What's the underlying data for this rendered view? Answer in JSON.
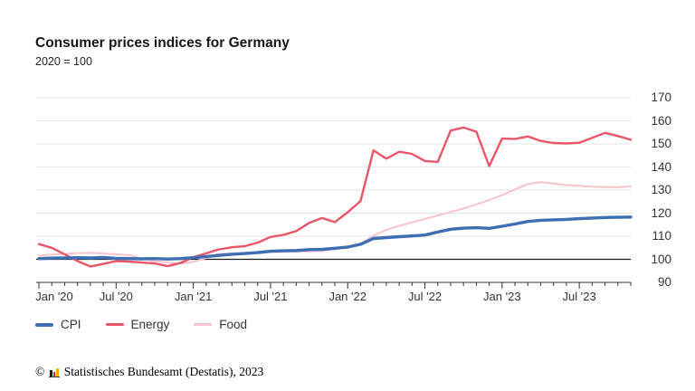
{
  "chart_data": {
    "type": "line",
    "title": "Consumer prices indices for Germany",
    "subtitle": "2020 = 100",
    "frequency": "monthly",
    "start": "2020-01",
    "end": "2023-11",
    "x_tick_labels": [
      "Jan '20",
      "Jul '20",
      "Jan '21",
      "Jul '21",
      "Jan '22",
      "Jul '22",
      "Jan '23",
      "Jul '23"
    ],
    "x_tick_month_indices": [
      0,
      6,
      12,
      18,
      24,
      30,
      36,
      42
    ],
    "y_ticks": [
      170,
      160,
      150,
      140,
      130,
      120,
      110,
      100,
      90
    ],
    "ylim": [
      90,
      170
    ],
    "baseline_value": 100,
    "grid": true,
    "legend_position": "bottom-left",
    "series": [
      {
        "name": "CPI",
        "color": "#3d6eb4",
        "values": [
          100.3,
          100.5,
          100.6,
          100.7,
          100.6,
          100.8,
          100.4,
          100.3,
          100.2,
          100.3,
          100.1,
          100.3,
          100.7,
          101.2,
          101.7,
          102.2,
          102.5,
          102.9,
          103.5,
          103.7,
          103.8,
          104.2,
          104.3,
          104.8,
          105.3,
          106.5,
          109.0,
          109.4,
          109.8,
          110.1,
          110.5,
          111.8,
          113.0,
          113.5,
          113.7,
          113.4,
          114.3,
          115.3,
          116.4,
          116.9,
          117.1,
          117.3,
          117.6,
          117.9,
          118.1,
          118.2,
          118.3
        ]
      },
      {
        "name": "Energy",
        "color": "#e95568",
        "values": [
          106.6,
          105.0,
          102.2,
          99.2,
          96.9,
          98.0,
          99.2,
          99.0,
          98.6,
          98.2,
          97.0,
          98.4,
          100.9,
          102.6,
          104.3,
          105.2,
          105.7,
          107.2,
          109.7,
          110.6,
          112.2,
          115.8,
          117.9,
          116.1,
          120.4,
          125.2,
          147.2,
          143.6,
          146.6,
          145.7,
          142.6,
          142.2,
          155.8,
          157.1,
          155.3,
          140.4,
          152.3,
          152.1,
          153.2,
          151.3,
          150.4,
          150.2,
          150.5,
          152.6,
          154.8,
          153.4,
          151.8
        ]
      },
      {
        "name": "Food",
        "color": "#f8c3ca",
        "values": [
          101.7,
          102.0,
          102.3,
          102.7,
          102.8,
          102.5,
          102.2,
          101.9,
          100.3,
          99.2,
          98.6,
          98.1,
          98.9,
          100.6,
          102.4,
          102.2,
          102.4,
          102.7,
          103.1,
          103.3,
          103.3,
          103.4,
          103.6,
          104.4,
          105.3,
          106.8,
          110.2,
          112.8,
          114.5,
          116.0,
          117.5,
          119.0,
          120.5,
          122.0,
          123.8,
          125.7,
          127.8,
          130.3,
          132.6,
          133.4,
          132.8,
          132.2,
          131.8,
          131.5,
          131.3,
          131.2,
          131.6
        ]
      }
    ],
    "colors": {
      "gridline": "#e6e6e6",
      "axis": "#333333",
      "baseline": "#1a1a1a",
      "label_text": "#333333"
    }
  },
  "footer": {
    "copyright": "©",
    "logo": "destatis-bar-chart-logo",
    "logo_bar_colors": [
      "#1a1a1a",
      "#d5202a",
      "#f0ab00"
    ],
    "source": "Statistisches Bundesamt (Destatis), 2023"
  }
}
